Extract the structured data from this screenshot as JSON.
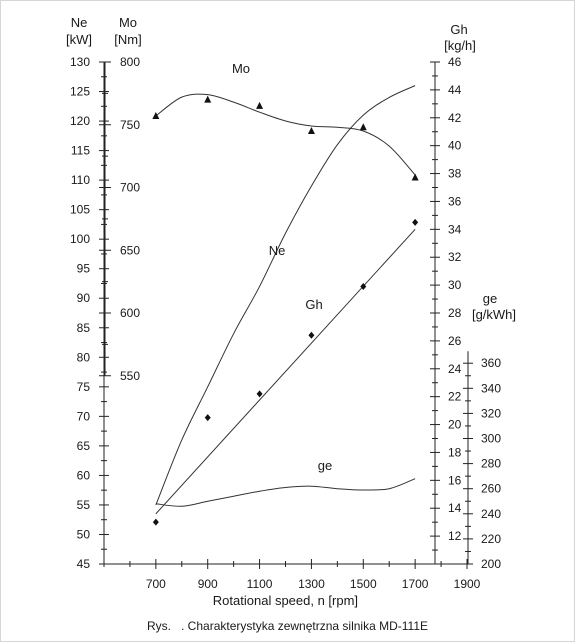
{
  "chart_data": {
    "type": "line",
    "title": "",
    "xlabel": "Rotational speed, n [rpm]",
    "x_ticks": [
      700,
      900,
      1100,
      1300,
      1500,
      1700,
      1900
    ],
    "xlim": [
      500,
      1900
    ],
    "axes": {
      "Ne": {
        "name": "Ne",
        "unit": "[kW]",
        "range": [
          45,
          130
        ],
        "ticks": [
          45,
          50,
          55,
          60,
          65,
          70,
          75,
          80,
          85,
          90,
          95,
          100,
          105,
          110,
          115,
          120,
          125,
          130
        ]
      },
      "Mo": {
        "name": "Mo",
        "unit": "[Nm]",
        "range": [
          400,
          800
        ],
        "ticks": [
          550,
          600,
          650,
          700,
          750,
          800
        ]
      },
      "Gh": {
        "name": "Gh",
        "unit": "[kg/h]",
        "range": [
          10,
          46
        ],
        "ticks": [
          12,
          14,
          16,
          18,
          20,
          22,
          24,
          26,
          28,
          30,
          32,
          34,
          36,
          38,
          40,
          42,
          44,
          46
        ]
      },
      "ge": {
        "name": "ge",
        "unit": "[g/kWh]",
        "range": [
          200,
          600
        ],
        "ticks": [
          200,
          220,
          240,
          260,
          280,
          300,
          320,
          340,
          360
        ]
      }
    },
    "series": [
      {
        "name": "Mo",
        "axis": "Mo",
        "marker": "triangle",
        "points": [
          [
            700,
            757
          ],
          [
            900,
            770
          ],
          [
            1100,
            765
          ],
          [
            1300,
            745
          ],
          [
            1500,
            748
          ],
          [
            1700,
            708
          ]
        ],
        "curve": [
          [
            700,
            757
          ],
          [
            800,
            772
          ],
          [
            900,
            774
          ],
          [
            1000,
            768
          ],
          [
            1100,
            760
          ],
          [
            1200,
            753
          ],
          [
            1300,
            749
          ],
          [
            1400,
            748
          ],
          [
            1500,
            745
          ],
          [
            1600,
            733
          ],
          [
            1700,
            710
          ]
        ]
      },
      {
        "name": "Ne",
        "axis": "Ne",
        "marker": "none",
        "curve": [
          [
            700,
            55
          ],
          [
            800,
            66
          ],
          [
            900,
            75
          ],
          [
            1000,
            84
          ],
          [
            1100,
            92
          ],
          [
            1200,
            101
          ],
          [
            1300,
            109
          ],
          [
            1400,
            116
          ],
          [
            1500,
            121
          ],
          [
            1600,
            124
          ],
          [
            1700,
            126
          ]
        ]
      },
      {
        "name": "Gh",
        "axis": "Gh",
        "marker": "diamond",
        "points": [
          [
            700,
            13.0
          ],
          [
            900,
            20.5
          ],
          [
            1100,
            22.2
          ],
          [
            1300,
            26.4
          ],
          [
            1500,
            29.9
          ],
          [
            1700,
            34.5
          ]
        ],
        "curve": [
          [
            700,
            13.6
          ],
          [
            1700,
            34.0
          ]
        ]
      },
      {
        "name": "ge",
        "axis": "ge",
        "marker": "none",
        "curve": [
          [
            700,
            248
          ],
          [
            800,
            246
          ],
          [
            900,
            250
          ],
          [
            1000,
            254
          ],
          [
            1100,
            258
          ],
          [
            1200,
            261
          ],
          [
            1300,
            262
          ],
          [
            1400,
            260
          ],
          [
            1500,
            259
          ],
          [
            1600,
            260
          ],
          [
            1700,
            268
          ]
        ]
      }
    ]
  },
  "caption": {
    "prefix": "Rys.",
    "text": ". Charakterystyka zewnętrzna silnika MD-111E"
  }
}
